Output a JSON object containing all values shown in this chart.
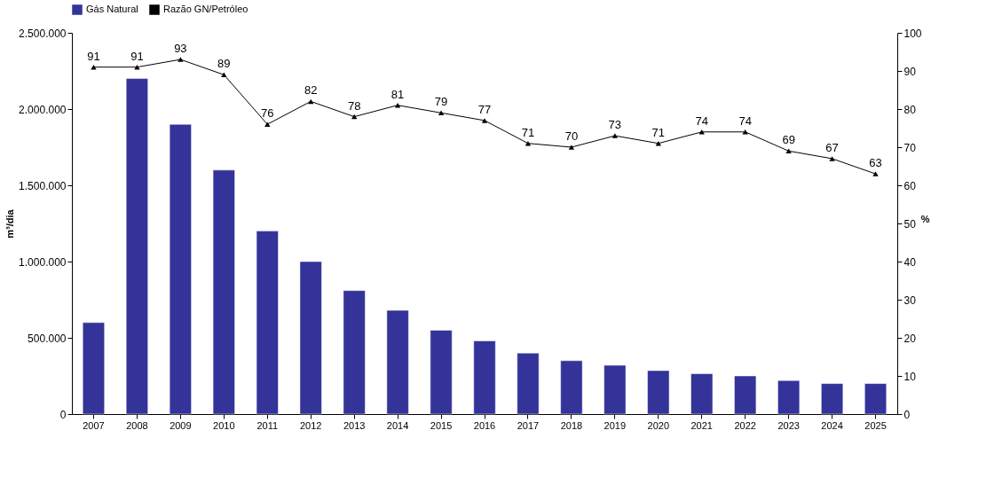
{
  "chart_data": {
    "type": "bar",
    "categories": [
      "2007",
      "2008",
      "2009",
      "2010",
      "2011",
      "2012",
      "2013",
      "2014",
      "2015",
      "2016",
      "2017",
      "2018",
      "2019",
      "2020",
      "2021",
      "2022",
      "2023",
      "2024",
      "2025"
    ],
    "series": [
      {
        "name": "Gás Natural",
        "color": "#333399",
        "values": [
          600000,
          2200000,
          1900000,
          1600000,
          1200000,
          1000000,
          810000,
          680000,
          550000,
          480000,
          400000,
          350000,
          320000,
          285000,
          265000,
          250000,
          220000,
          200000,
          200000
        ]
      },
      {
        "name": "Razão GN/Petróleo",
        "type": "line",
        "axis": "y2",
        "color": "#000000",
        "marker": "triangle",
        "data_labels": true,
        "values": [
          91,
          91,
          93,
          89,
          76,
          82,
          78,
          81,
          79,
          77,
          71,
          70,
          73,
          71,
          74,
          74,
          69,
          67,
          63
        ]
      }
    ],
    "ylabel": "m³/dia",
    "y2label": "%",
    "ylim": [
      0,
      2500000
    ],
    "yticks": [
      0,
      {
        "value": 500000,
        "label": "500.000"
      },
      {
        "value": 1000000,
        "label": "1.000.000"
      },
      {
        "value": 1500000,
        "label": "1.500.000"
      },
      {
        "value": 2000000,
        "label": "2.000.000"
      },
      {
        "value": 2500000,
        "label": "2.500.000"
      }
    ],
    "y2lim": [
      0,
      100
    ],
    "y2ticks": [
      0,
      10,
      20,
      30,
      40,
      50,
      60,
      70,
      80,
      90,
      100
    ],
    "legend": "top",
    "grid": false
  }
}
